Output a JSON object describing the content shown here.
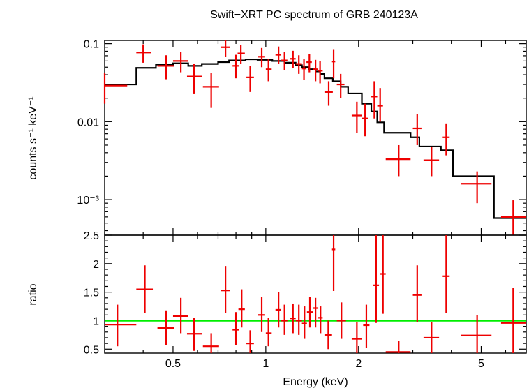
{
  "chart_data": {
    "type": "scatter",
    "title": "Swift−XRT PC spectrum of GRB 240123A",
    "xlabel": "Energy (keV)",
    "x_scale": "log",
    "xlim": [
      0.3,
      7.0
    ],
    "x_ticks": [
      {
        "v": 0.5,
        "label": "0.5"
      },
      {
        "v": 1,
        "label": "1"
      },
      {
        "v": 2,
        "label": "2"
      },
      {
        "v": 5,
        "label": "5"
      }
    ],
    "panels": {
      "spectrum": {
        "ylabel": "counts s⁻¹ keV⁻¹",
        "y_scale": "log",
        "ylim": [
          0.00035,
          0.11
        ],
        "y_ticks": [
          {
            "v": 0.1,
            "label": "0.1"
          },
          {
            "v": 0.01,
            "label": "0.01"
          },
          {
            "v": 0.001,
            "label": "10⁻³"
          }
        ],
        "data_color": "#ee0000",
        "model_color": "#000000",
        "data": [
          {
            "x": 0.3,
            "x1": 0.3,
            "x2": 0.355,
            "y": 0.029,
            "ylo": 0.017,
            "yhi": 0.042
          },
          {
            "x": 0.4,
            "x1": 0.38,
            "x2": 0.425,
            "y": 0.077,
            "ylo": 0.057,
            "yhi": 0.098
          },
          {
            "x": 0.475,
            "x1": 0.445,
            "x2": 0.505,
            "y": 0.052,
            "ylo": 0.035,
            "yhi": 0.071
          },
          {
            "x": 0.53,
            "x1": 0.5,
            "x2": 0.56,
            "y": 0.06,
            "ylo": 0.043,
            "yhi": 0.079
          },
          {
            "x": 0.585,
            "x1": 0.555,
            "x2": 0.62,
            "y": 0.038,
            "ylo": 0.023,
            "yhi": 0.055
          },
          {
            "x": 0.665,
            "x1": 0.625,
            "x2": 0.705,
            "y": 0.028,
            "ylo": 0.015,
            "yhi": 0.042
          },
          {
            "x": 0.74,
            "x1": 0.715,
            "x2": 0.765,
            "y": 0.09,
            "ylo": 0.068,
            "yhi": 0.11
          },
          {
            "x": 0.8,
            "x1": 0.78,
            "x2": 0.82,
            "y": 0.052,
            "ylo": 0.036,
            "yhi": 0.072
          },
          {
            "x": 0.83,
            "x1": 0.81,
            "x2": 0.855,
            "y": 0.075,
            "ylo": 0.055,
            "yhi": 0.097
          },
          {
            "x": 0.89,
            "x1": 0.865,
            "x2": 0.915,
            "y": 0.037,
            "ylo": 0.024,
            "yhi": 0.052
          },
          {
            "x": 0.97,
            "x1": 0.945,
            "x2": 0.995,
            "y": 0.068,
            "ylo": 0.05,
            "yhi": 0.088
          },
          {
            "x": 1.02,
            "x1": 1.0,
            "x2": 1.045,
            "y": 0.047,
            "ylo": 0.033,
            "yhi": 0.063
          },
          {
            "x": 1.1,
            "x1": 1.075,
            "x2": 1.12,
            "y": 0.072,
            "ylo": 0.055,
            "yhi": 0.092
          },
          {
            "x": 1.15,
            "x1": 1.12,
            "x2": 1.175,
            "y": 0.061,
            "ylo": 0.046,
            "yhi": 0.078
          },
          {
            "x": 1.225,
            "x1": 1.195,
            "x2": 1.25,
            "y": 0.064,
            "ylo": 0.049,
            "yhi": 0.081
          },
          {
            "x": 1.28,
            "x1": 1.25,
            "x2": 1.31,
            "y": 0.055,
            "ylo": 0.041,
            "yhi": 0.071
          },
          {
            "x": 1.33,
            "x1": 1.31,
            "x2": 1.355,
            "y": 0.048,
            "ylo": 0.034,
            "yhi": 0.063
          },
          {
            "x": 1.385,
            "x1": 1.355,
            "x2": 1.41,
            "y": 0.058,
            "ylo": 0.043,
            "yhi": 0.074
          },
          {
            "x": 1.45,
            "x1": 1.42,
            "x2": 1.48,
            "y": 0.047,
            "ylo": 0.033,
            "yhi": 0.062
          },
          {
            "x": 1.5,
            "x1": 1.48,
            "x2": 1.53,
            "y": 0.045,
            "ylo": 0.031,
            "yhi": 0.06
          },
          {
            "x": 1.6,
            "x1": 1.55,
            "x2": 1.65,
            "y": 0.024,
            "ylo": 0.016,
            "yhi": 0.033
          },
          {
            "x": 1.66,
            "x1": 1.64,
            "x2": 1.68,
            "y": 0.059,
            "ylo": 0.036,
            "yhi": 0.085
          },
          {
            "x": 1.75,
            "x1": 1.7,
            "x2": 1.8,
            "y": 0.03,
            "ylo": 0.02,
            "yhi": 0.041
          },
          {
            "x": 1.975,
            "x1": 1.9,
            "x2": 2.05,
            "y": 0.012,
            "ylo": 0.0072,
            "yhi": 0.018
          },
          {
            "x": 2.1,
            "x1": 2.05,
            "x2": 2.15,
            "y": 0.011,
            "ylo": 0.0065,
            "yhi": 0.017
          },
          {
            "x": 2.25,
            "x1": 2.2,
            "x2": 2.3,
            "y": 0.021,
            "ylo": 0.011,
            "yhi": 0.033
          },
          {
            "x": 2.35,
            "x1": 2.3,
            "x2": 2.4,
            "y": 0.016,
            "ylo": 0.01,
            "yhi": 0.027
          },
          {
            "x": 2.7,
            "x1": 2.45,
            "x2": 2.95,
            "y": 0.0033,
            "ylo": 0.002,
            "yhi": 0.005
          },
          {
            "x": 3.1,
            "x1": 3.0,
            "x2": 3.2,
            "y": 0.0082,
            "ylo": 0.005,
            "yhi": 0.0125
          },
          {
            "x": 3.45,
            "x1": 3.25,
            "x2": 3.65,
            "y": 0.0032,
            "ylo": 0.002,
            "yhi": 0.0047
          },
          {
            "x": 3.85,
            "x1": 3.75,
            "x2": 3.95,
            "y": 0.0063,
            "ylo": 0.0037,
            "yhi": 0.0095
          },
          {
            "x": 4.85,
            "x1": 4.3,
            "x2": 5.4,
            "y": 0.0016,
            "ylo": 0.0009,
            "yhi": 0.0023
          },
          {
            "x": 6.35,
            "x1": 5.8,
            "x2": 7.0,
            "y": 0.0006,
            "ylo": 0.00035,
            "yhi": 0.00098
          }
        ],
        "model": [
          {
            "x1": 0.3,
            "x2": 0.38,
            "y": 0.03
          },
          {
            "x1": 0.38,
            "x2": 0.44,
            "y": 0.049
          },
          {
            "x1": 0.44,
            "x2": 0.5,
            "y": 0.054
          },
          {
            "x1": 0.5,
            "x2": 0.56,
            "y": 0.056
          },
          {
            "x1": 0.56,
            "x2": 0.62,
            "y": 0.052
          },
          {
            "x1": 0.62,
            "x2": 0.7,
            "y": 0.055
          },
          {
            "x1": 0.7,
            "x2": 0.76,
            "y": 0.058
          },
          {
            "x1": 0.76,
            "x2": 0.86,
            "y": 0.061
          },
          {
            "x1": 0.86,
            "x2": 0.94,
            "y": 0.063
          },
          {
            "x1": 0.94,
            "x2": 1.05,
            "y": 0.062
          },
          {
            "x1": 1.05,
            "x2": 1.15,
            "y": 0.06
          },
          {
            "x1": 1.15,
            "x2": 1.25,
            "y": 0.057
          },
          {
            "x1": 1.25,
            "x2": 1.31,
            "y": 0.053
          },
          {
            "x1": 1.31,
            "x2": 1.38,
            "y": 0.05
          },
          {
            "x1": 1.38,
            "x2": 1.45,
            "y": 0.047
          },
          {
            "x1": 1.45,
            "x2": 1.5,
            "y": 0.044
          },
          {
            "x1": 1.5,
            "x2": 1.55,
            "y": 0.041
          },
          {
            "x1": 1.55,
            "x2": 1.65,
            "y": 0.036
          },
          {
            "x1": 1.65,
            "x2": 1.75,
            "y": 0.033
          },
          {
            "x1": 1.75,
            "x2": 1.85,
            "y": 0.028
          },
          {
            "x1": 1.85,
            "x2": 2.05,
            "y": 0.023
          },
          {
            "x1": 2.05,
            "x2": 2.2,
            "y": 0.017
          },
          {
            "x1": 2.2,
            "x2": 2.3,
            "y": 0.0135
          },
          {
            "x1": 2.3,
            "x2": 2.42,
            "y": 0.0098
          },
          {
            "x1": 2.42,
            "x2": 2.95,
            "y": 0.0072
          },
          {
            "x1": 2.95,
            "x2": 3.15,
            "y": 0.0063
          },
          {
            "x1": 3.15,
            "x2": 3.7,
            "y": 0.0048
          },
          {
            "x1": 3.7,
            "x2": 4.05,
            "y": 0.0043
          },
          {
            "x1": 4.05,
            "x2": 5.5,
            "y": 0.002
          },
          {
            "x1": 5.5,
            "x2": 7.0,
            "y": 0.00058
          }
        ]
      },
      "ratio": {
        "ylabel": "ratio",
        "y_scale": "linear",
        "ylim": [
          0.43,
          2.5
        ],
        "y_ticks": [
          {
            "v": 0.5,
            "label": "0.5"
          },
          {
            "v": 1,
            "label": "1"
          },
          {
            "v": 1.5,
            "label": "1.5"
          },
          {
            "v": 2,
            "label": "2"
          },
          {
            "v": 2.5,
            "label": "2.5"
          }
        ],
        "reference_line": {
          "y": 1,
          "color": "#00ee00"
        },
        "data_color": "#ee0000",
        "data": [
          {
            "x": 0.33,
            "x1": 0.3,
            "x2": 0.38,
            "y": 0.93,
            "ylo": 0.55,
            "yhi": 1.28
          },
          {
            "x": 0.405,
            "x1": 0.38,
            "x2": 0.43,
            "y": 1.55,
            "ylo": 1.14,
            "yhi": 1.97
          },
          {
            "x": 0.475,
            "x1": 0.445,
            "x2": 0.505,
            "y": 0.87,
            "ylo": 0.57,
            "yhi": 1.18
          },
          {
            "x": 0.53,
            "x1": 0.5,
            "x2": 0.56,
            "y": 1.08,
            "ylo": 0.78,
            "yhi": 1.4
          },
          {
            "x": 0.585,
            "x1": 0.555,
            "x2": 0.62,
            "y": 0.77,
            "ylo": 0.47,
            "yhi": 1.05
          },
          {
            "x": 0.665,
            "x1": 0.625,
            "x2": 0.705,
            "y": 0.55,
            "ylo": 0.43,
            "yhi": 0.78
          },
          {
            "x": 0.74,
            "x1": 0.715,
            "x2": 0.765,
            "y": 1.53,
            "ylo": 1.13,
            "yhi": 1.96
          },
          {
            "x": 0.8,
            "x1": 0.78,
            "x2": 0.82,
            "y": 0.84,
            "ylo": 0.57,
            "yhi": 1.15
          },
          {
            "x": 0.835,
            "x1": 0.815,
            "x2": 0.855,
            "y": 1.2,
            "ylo": 0.88,
            "yhi": 1.55
          },
          {
            "x": 0.89,
            "x1": 0.865,
            "x2": 0.915,
            "y": 0.6,
            "ylo": 0.43,
            "yhi": 0.83
          },
          {
            "x": 0.97,
            "x1": 0.945,
            "x2": 0.995,
            "y": 1.1,
            "ylo": 0.8,
            "yhi": 1.42
          },
          {
            "x": 1.02,
            "x1": 1.0,
            "x2": 1.045,
            "y": 0.78,
            "ylo": 0.55,
            "yhi": 1.05
          },
          {
            "x": 1.1,
            "x1": 1.075,
            "x2": 1.12,
            "y": 1.19,
            "ylo": 0.88,
            "yhi": 1.5
          },
          {
            "x": 1.15,
            "x1": 1.12,
            "x2": 1.175,
            "y": 1.0,
            "ylo": 0.75,
            "yhi": 1.28
          },
          {
            "x": 1.225,
            "x1": 1.195,
            "x2": 1.25,
            "y": 1.04,
            "ylo": 0.78,
            "yhi": 1.3
          },
          {
            "x": 1.28,
            "x1": 1.25,
            "x2": 1.31,
            "y": 1.0,
            "ylo": 0.75,
            "yhi": 1.28
          },
          {
            "x": 1.335,
            "x1": 1.31,
            "x2": 1.36,
            "y": 0.95,
            "ylo": 0.68,
            "yhi": 1.25
          },
          {
            "x": 1.39,
            "x1": 1.36,
            "x2": 1.42,
            "y": 1.15,
            "ylo": 0.88,
            "yhi": 1.42
          },
          {
            "x": 1.45,
            "x1": 1.42,
            "x2": 1.48,
            "y": 1.22,
            "ylo": 0.88,
            "yhi": 1.4
          },
          {
            "x": 1.505,
            "x1": 1.48,
            "x2": 1.53,
            "y": 1.05,
            "ylo": 0.78,
            "yhi": 1.25
          },
          {
            "x": 1.595,
            "x1": 1.55,
            "x2": 1.64,
            "y": 0.75,
            "ylo": 0.5,
            "yhi": 1.0
          },
          {
            "x": 1.66,
            "x1": 1.64,
            "x2": 1.68,
            "y": 2.25,
            "ylo": 1.52,
            "yhi": 2.5
          },
          {
            "x": 1.76,
            "x1": 1.7,
            "x2": 1.82,
            "y": 1.0,
            "ylo": 0.68,
            "yhi": 1.32
          },
          {
            "x": 1.975,
            "x1": 1.9,
            "x2": 2.05,
            "y": 0.68,
            "ylo": 0.43,
            "yhi": 0.98
          },
          {
            "x": 2.12,
            "x1": 2.07,
            "x2": 2.17,
            "y": 0.92,
            "ylo": 0.52,
            "yhi": 1.28
          },
          {
            "x": 2.28,
            "x1": 2.23,
            "x2": 2.33,
            "y": 1.62,
            "ylo": 0.96,
            "yhi": 2.5
          },
          {
            "x": 2.4,
            "x1": 2.35,
            "x2": 2.45,
            "y": 1.82,
            "ylo": 1.12,
            "yhi": 2.5
          },
          {
            "x": 2.7,
            "x1": 2.45,
            "x2": 2.95,
            "y": 0.45,
            "ylo": 0.43,
            "yhi": 0.64
          },
          {
            "x": 3.1,
            "x1": 3.0,
            "x2": 3.2,
            "y": 1.45,
            "ylo": 0.98,
            "yhi": 1.97
          },
          {
            "x": 3.45,
            "x1": 3.25,
            "x2": 3.65,
            "y": 0.7,
            "ylo": 0.43,
            "yhi": 0.97
          },
          {
            "x": 3.85,
            "x1": 3.75,
            "x2": 3.95,
            "y": 1.78,
            "ylo": 1.13,
            "yhi": 2.5
          },
          {
            "x": 4.85,
            "x1": 4.3,
            "x2": 5.4,
            "y": 0.74,
            "ylo": 0.43,
            "yhi": 1.1
          },
          {
            "x": 6.35,
            "x1": 5.8,
            "x2": 7.0,
            "y": 0.96,
            "ylo": 0.43,
            "yhi": 1.58
          }
        ]
      }
    }
  }
}
